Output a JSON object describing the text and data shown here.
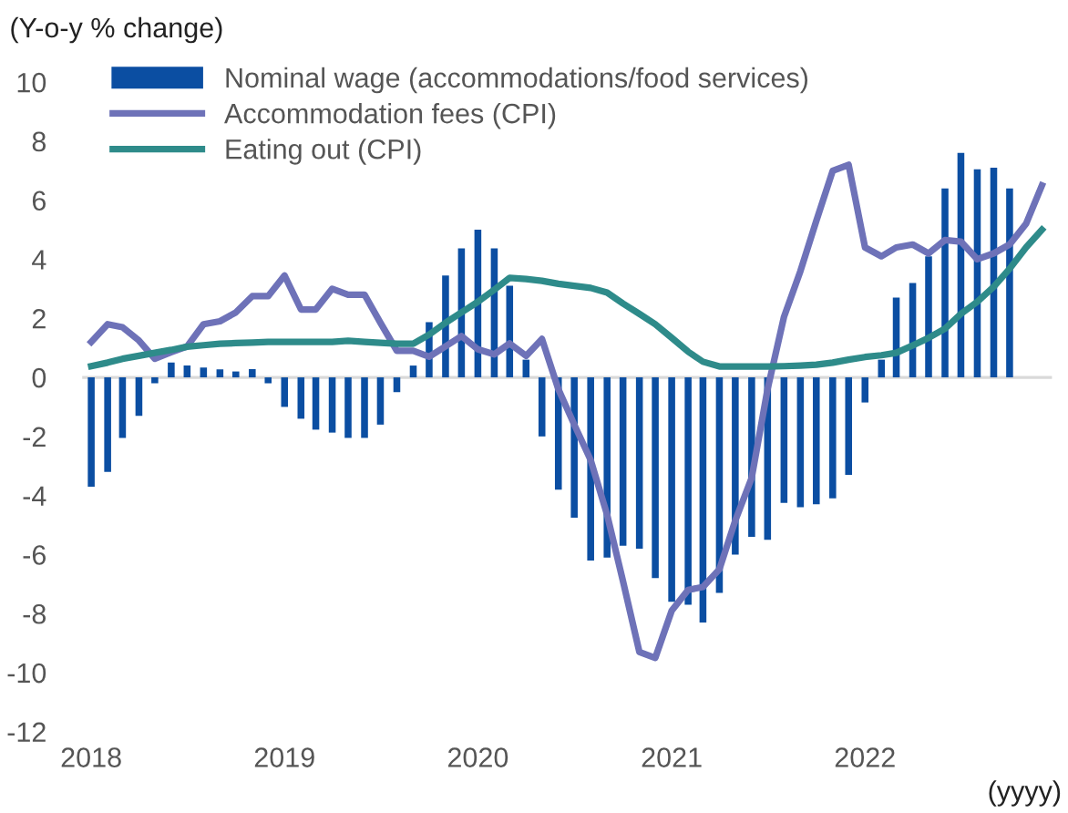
{
  "chart_data": {
    "type": "bar",
    "ylabel": "(Y-o-y % change)",
    "xlabel": "(yyyy)",
    "xlim": [
      "2017-12-15",
      "2022-12-20"
    ],
    "ylim": [
      -12,
      10
    ],
    "yticks": [
      -12,
      -10,
      -8,
      -6,
      -4,
      -2,
      0,
      2,
      4,
      6,
      8,
      10
    ],
    "xticks": [
      {
        "value": "2018-01",
        "label": "2018"
      },
      {
        "value": "2019-01",
        "label": "2019"
      },
      {
        "value": "2020-01",
        "label": "2020"
      },
      {
        "value": "2021-01",
        "label": "2021"
      },
      {
        "value": "2022-01",
        "label": "2022"
      }
    ],
    "legend": "top left",
    "ref_lines": [
      {
        "axis": "y",
        "value": 0,
        "color": "#d9d9d9"
      }
    ],
    "series": [
      {
        "name": "Nominal wage (accommodations/food services)",
        "color": "#0b4ea2",
        "x": [
          "2018-01",
          "2018-02",
          "2018-03",
          "2018-04",
          "2018-05",
          "2018-06",
          "2018-07",
          "2018-08",
          "2018-09",
          "2018-10",
          "2018-11",
          "2018-12",
          "2019-01",
          "2019-02",
          "2019-03",
          "2019-04",
          "2019-05",
          "2019-06",
          "2019-07",
          "2019-08",
          "2019-09",
          "2019-10",
          "2019-11",
          "2019-12",
          "2020-01",
          "2020-02",
          "2020-03",
          "2020-04",
          "2020-05",
          "2020-06",
          "2020-07",
          "2020-08",
          "2020-09",
          "2020-10",
          "2020-11",
          "2020-12",
          "2021-01",
          "2021-02",
          "2021-03",
          "2021-04",
          "2021-05",
          "2021-06",
          "2021-07",
          "2021-08",
          "2021-09",
          "2021-10",
          "2021-11",
          "2021-12",
          "2022-01",
          "2022-02",
          "2022-03",
          "2022-04",
          "2022-05",
          "2022-06",
          "2022-07",
          "2022-08",
          "2022-09",
          "2022-10"
        ],
        "values": [
          -3.7,
          -3.2,
          -2.05,
          -1.3,
          -0.2,
          0.5,
          0.4,
          0.33,
          0.27,
          0.2,
          0.28,
          -0.2,
          -1.0,
          -1.4,
          -1.77,
          -1.87,
          -2.05,
          -2.05,
          -1.6,
          -0.5,
          0.4,
          1.87,
          3.45,
          4.37,
          5.0,
          4.37,
          3.1,
          0.6,
          -2.0,
          -3.8,
          -4.75,
          -6.2,
          -6.1,
          -5.7,
          -5.8,
          -6.8,
          -7.6,
          -7.7,
          -8.3,
          -7.3,
          -6.0,
          -5.4,
          -5.5,
          -4.25,
          -4.4,
          -4.3,
          -4.1,
          -3.3,
          -0.85,
          0.6,
          2.7,
          3.2,
          4.1,
          6.4,
          7.6,
          7.05,
          7.1,
          6.4
        ]
      },
      {
        "name": "Accommodation fees (CPI)",
        "type": "line",
        "color": "#6e72b8",
        "x": [
          "2018-01",
          "2018-02",
          "2018-03",
          "2018-04",
          "2018-05",
          "2018-06",
          "2018-07",
          "2018-08",
          "2018-09",
          "2018-10",
          "2018-11",
          "2018-12",
          "2019-01",
          "2019-02",
          "2019-03",
          "2019-04",
          "2019-05",
          "2019-06",
          "2019-07",
          "2019-08",
          "2019-09",
          "2019-10",
          "2019-11",
          "2019-12",
          "2020-01",
          "2020-02",
          "2020-03",
          "2020-04",
          "2020-05",
          "2020-06",
          "2020-07",
          "2020-08",
          "2020-09",
          "2020-10",
          "2020-11",
          "2020-12",
          "2021-01",
          "2021-02",
          "2021-03",
          "2021-04",
          "2021-05",
          "2021-06",
          "2021-07",
          "2021-08",
          "2021-09",
          "2021-10",
          "2021-11",
          "2021-12",
          "2022-01",
          "2022-02",
          "2022-03",
          "2022-04",
          "2022-05",
          "2022-06",
          "2022-07",
          "2022-08",
          "2022-09",
          "2022-10",
          "2022-11",
          "2022-12"
        ],
        "values": [
          1.2,
          1.8,
          1.7,
          1.25,
          0.63,
          0.85,
          1.05,
          1.8,
          1.9,
          2.2,
          2.75,
          2.75,
          3.45,
          2.3,
          2.3,
          3.0,
          2.8,
          2.8,
          1.85,
          0.9,
          0.9,
          0.7,
          1.05,
          1.4,
          0.95,
          0.78,
          1.15,
          0.73,
          1.3,
          -0.4,
          -1.6,
          -2.8,
          -4.65,
          -6.9,
          -9.3,
          -9.5,
          -7.9,
          -7.2,
          -7.1,
          -6.5,
          -4.85,
          -3.4,
          -0.4,
          2.05,
          3.6,
          5.3,
          7.0,
          7.2,
          4.4,
          4.1,
          4.4,
          4.5,
          4.2,
          4.65,
          4.6,
          4.0,
          4.2,
          4.5,
          5.2,
          6.5
        ]
      },
      {
        "name": "Eating out (CPI)",
        "type": "line",
        "color": "#2e8b8a",
        "x": [
          "2018-01",
          "2018-02",
          "2018-03",
          "2018-04",
          "2018-05",
          "2018-06",
          "2018-07",
          "2018-08",
          "2018-09",
          "2018-10",
          "2018-11",
          "2018-12",
          "2019-01",
          "2019-02",
          "2019-03",
          "2019-04",
          "2019-05",
          "2019-06",
          "2019-07",
          "2019-08",
          "2019-09",
          "2019-10",
          "2019-11",
          "2019-12",
          "2020-01",
          "2020-02",
          "2020-03",
          "2020-04",
          "2020-05",
          "2020-06",
          "2020-07",
          "2020-08",
          "2020-09",
          "2020-10",
          "2020-11",
          "2020-12",
          "2021-01",
          "2021-02",
          "2021-03",
          "2021-04",
          "2021-05",
          "2021-06",
          "2021-07",
          "2021-08",
          "2021-09",
          "2021-10",
          "2021-11",
          "2021-12",
          "2022-01",
          "2022-02",
          "2022-03",
          "2022-04",
          "2022-05",
          "2022-06",
          "2022-07",
          "2022-08",
          "2022-09",
          "2022-10",
          "2022-11",
          "2022-12"
        ],
        "values": [
          0.38,
          0.5,
          0.63,
          0.73,
          0.83,
          0.93,
          1.04,
          1.09,
          1.14,
          1.16,
          1.18,
          1.2,
          1.2,
          1.2,
          1.2,
          1.2,
          1.24,
          1.2,
          1.17,
          1.14,
          1.14,
          1.45,
          1.85,
          2.2,
          2.56,
          2.97,
          3.37,
          3.33,
          3.27,
          3.17,
          3.1,
          3.03,
          2.87,
          2.5,
          2.15,
          1.8,
          1.34,
          0.87,
          0.53,
          0.37,
          0.37,
          0.37,
          0.37,
          0.38,
          0.4,
          0.43,
          0.5,
          0.6,
          0.69,
          0.75,
          0.83,
          1.08,
          1.34,
          1.65,
          2.15,
          2.56,
          3.07,
          3.68,
          4.4,
          5.0
        ]
      }
    ]
  }
}
